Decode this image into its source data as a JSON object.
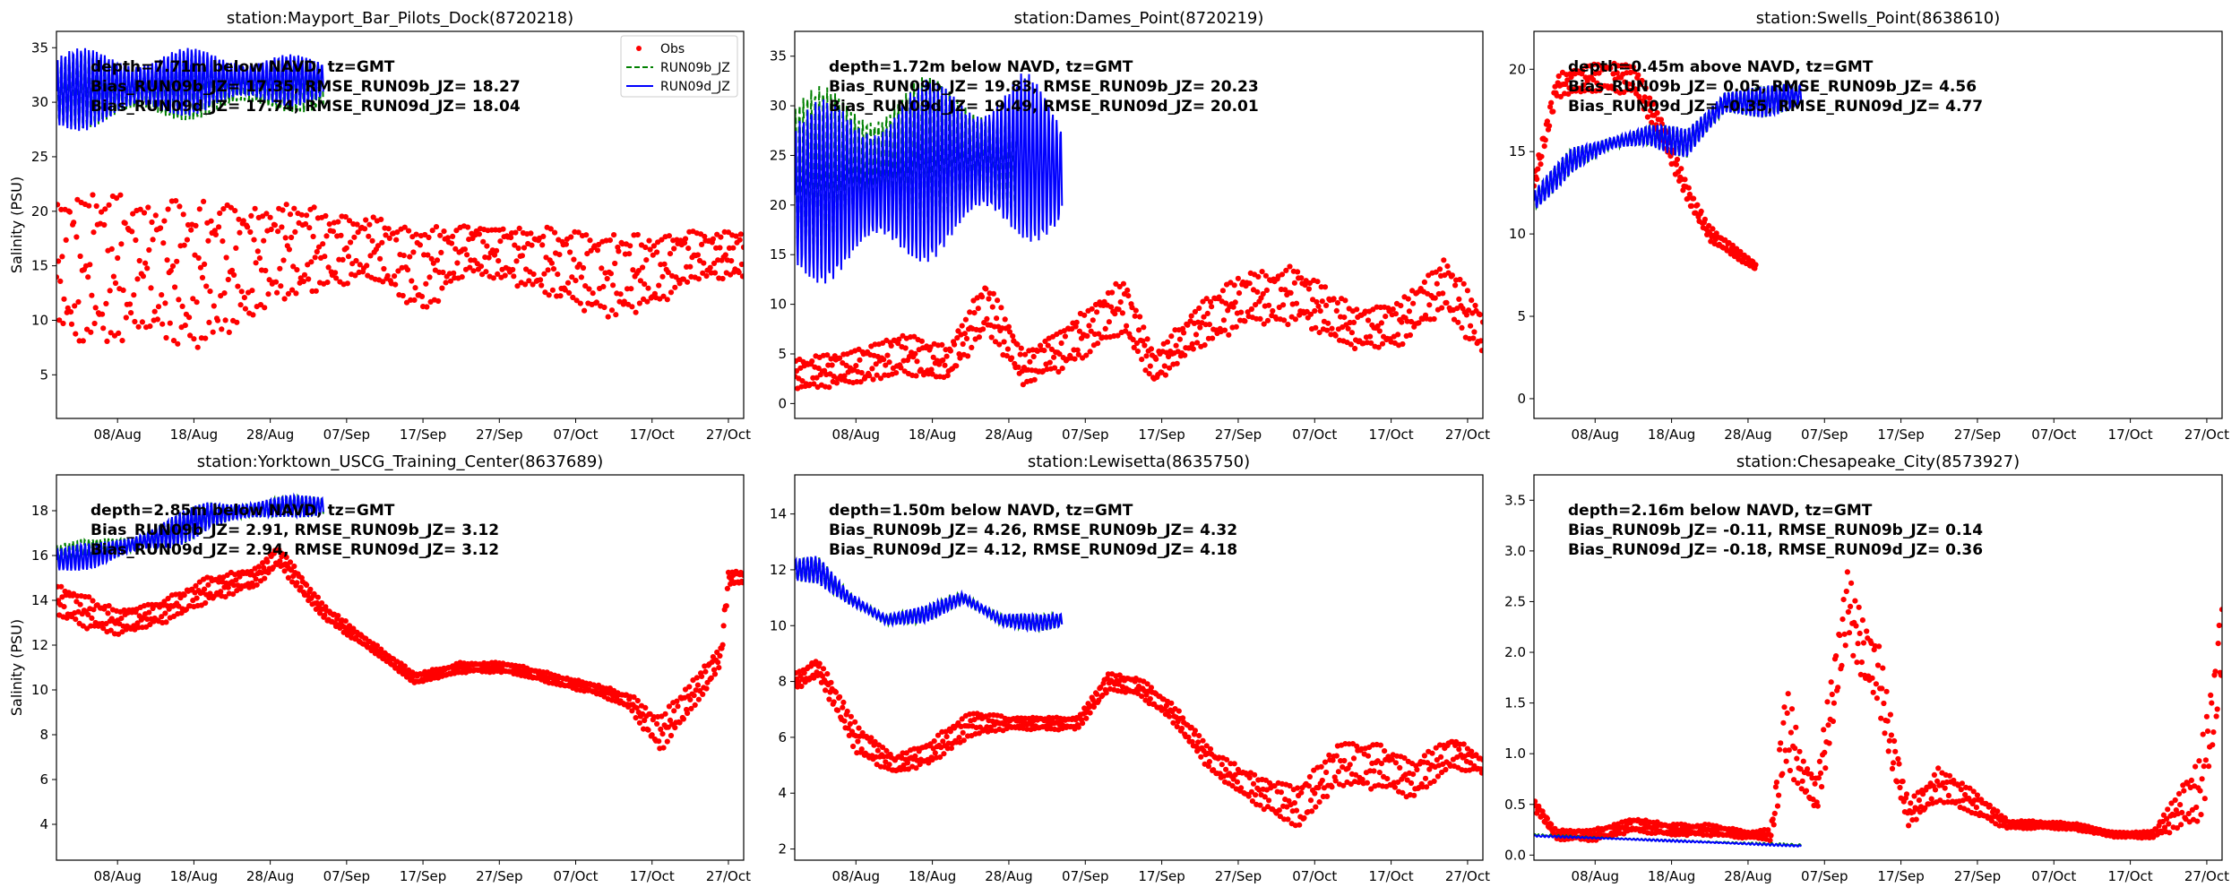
{
  "figure": {
    "ylabel": "Salinity (PSU)",
    "colors": {
      "obs": "#ff0000",
      "run09b": "#008000",
      "run09d": "#0000ff"
    }
  },
  "xaxis": {
    "start_date": "2024-07-31",
    "end_date": "2024-10-29",
    "tick_dates": [
      "2024-08-08",
      "2024-08-18",
      "2024-08-28",
      "2024-09-07",
      "2024-09-17",
      "2024-09-27",
      "2024-10-07",
      "2024-10-17",
      "2024-10-27"
    ],
    "tick_labels": [
      "08/Aug",
      "18/Aug",
      "28/Aug",
      "07/Sep",
      "17/Sep",
      "27/Sep",
      "07/Oct",
      "17/Oct",
      "27/Oct"
    ]
  },
  "legend": {
    "entries": [
      "Obs",
      "RUN09b_JZ",
      "RUN09d_JZ"
    ],
    "placement": "upper-right of first panel"
  },
  "chart_data": [
    {
      "type": "scatter+line",
      "title": "station:Mayport_Bar_Pilots_Dock(8720218)",
      "annotation": [
        "depth=7.71m below NAVD, tz=GMT",
        "Bias_RUN09b_JZ= 17.35, RMSE_RUN09b_JZ= 18.27",
        "Bias_RUN09d_JZ= 17.74, RMSE_RUN09d_JZ= 18.04"
      ],
      "ylim": [
        1,
        36.5
      ],
      "yticks": [
        5,
        10,
        15,
        20,
        25,
        30,
        35
      ],
      "show_ylabel": true,
      "show_legend": true,
      "obs": {
        "x": [
          "2024-07-31",
          "2024-08-06",
          "2024-08-12",
          "2024-08-18",
          "2024-08-24",
          "2024-08-30",
          "2024-09-05",
          "2024-09-11",
          "2024-09-17",
          "2024-09-23",
          "2024-09-29",
          "2024-10-05",
          "2024-10-11",
          "2024-10-17",
          "2024-10-23",
          "2024-10-29"
        ],
        "mean": [
          15.0,
          14.5,
          15.0,
          14.0,
          15.0,
          16.5,
          16.5,
          16.5,
          14.5,
          16.5,
          16.0,
          15.0,
          14.0,
          14.5,
          16.0,
          16.0
        ],
        "amp": [
          6.0,
          6.5,
          5.5,
          6.0,
          5.0,
          4.0,
          3.0,
          2.5,
          3.5,
          2.0,
          2.5,
          3.0,
          3.5,
          3.0,
          2.0,
          2.0
        ]
      },
      "run09b": {
        "x": [
          "2024-07-31",
          "2024-08-10",
          "2024-08-20",
          "2024-08-30",
          "2024-09-04"
        ],
        "mean": [
          31.0,
          31.2,
          31.5,
          31.5,
          31.5
        ],
        "amp": [
          3.5,
          3.5,
          3.0,
          2.5,
          2.5
        ]
      },
      "run09d": {
        "x": [
          "2024-07-31",
          "2024-08-10",
          "2024-08-20",
          "2024-08-30",
          "2024-09-04"
        ],
        "mean": [
          31.0,
          31.5,
          32.0,
          32.0,
          32.0
        ],
        "amp": [
          4.0,
          3.5,
          3.0,
          2.5,
          2.0
        ]
      }
    },
    {
      "type": "scatter+line",
      "title": "station:Dames_Point(8720219)",
      "annotation": [
        "depth=1.72m below NAVD, tz=GMT",
        "Bias_RUN09b_JZ= 19.83, RMSE_RUN09b_JZ= 20.23",
        "Bias_RUN09d_JZ= 19.49, RMSE_RUN09d_JZ= 20.01"
      ],
      "ylim": [
        -1.5,
        37.5
      ],
      "yticks": [
        0,
        5,
        10,
        15,
        20,
        25,
        30,
        35
      ],
      "show_ylabel": false,
      "show_legend": false,
      "obs": {
        "x": [
          "2024-07-31",
          "2024-08-07",
          "2024-08-14",
          "2024-08-20",
          "2024-08-25",
          "2024-08-30",
          "2024-09-05",
          "2024-09-12",
          "2024-09-16",
          "2024-09-22",
          "2024-09-28",
          "2024-10-05",
          "2024-10-12",
          "2024-10-18",
          "2024-10-24",
          "2024-10-29"
        ],
        "mean": [
          3.0,
          3.5,
          5.0,
          4.0,
          10.0,
          3.5,
          6.0,
          10.0,
          3.5,
          8.0,
          10.5,
          11.0,
          7.5,
          8.0,
          12.0,
          7.0
        ],
        "amp": [
          1.5,
          1.5,
          2.0,
          1.5,
          2.5,
          1.5,
          2.0,
          2.5,
          1.5,
          2.0,
          2.5,
          2.5,
          2.0,
          2.0,
          2.5,
          2.0
        ]
      },
      "run09b": {
        "x": [
          "2024-07-31",
          "2024-08-08",
          "2024-08-16",
          "2024-08-24",
          "2024-08-29"
        ],
        "mean": [
          23.0,
          24.0,
          25.0,
          25.0,
          24.0
        ],
        "amp": [
          9.0,
          8.0,
          8.0,
          8.0,
          6.0
        ]
      },
      "run09d": {
        "x": [
          "2024-07-31",
          "2024-08-10",
          "2024-08-20",
          "2024-08-30",
          "2024-09-04"
        ],
        "mean": [
          21.0,
          22.0,
          24.0,
          25.0,
          23.0
        ],
        "amp": [
          9.0,
          10.0,
          9.0,
          9.0,
          6.0
        ]
      }
    },
    {
      "type": "scatter+line",
      "title": "station:Swells_Point(8638610)",
      "annotation": [
        "depth=0.45m above NAVD, tz=GMT",
        "Bias_RUN09b_JZ= 0.05, RMSE_RUN09b_JZ= 4.56",
        "Bias_RUN09d_JZ= -0.35, RMSE_RUN09d_JZ= 4.77"
      ],
      "ylim": [
        -1.2,
        22.3
      ],
      "yticks": [
        0,
        5,
        10,
        15,
        20
      ],
      "show_ylabel": false,
      "show_legend": false,
      "obs": {
        "x": [
          "2024-07-31",
          "2024-08-03",
          "2024-08-08",
          "2024-08-13",
          "2024-08-17",
          "2024-08-20",
          "2024-08-23",
          "2024-08-26",
          "2024-08-29"
        ],
        "mean": [
          13.0,
          19.0,
          19.5,
          19.5,
          16.0,
          12.5,
          10.0,
          9.0,
          8.0
        ],
        "amp": [
          0.5,
          0.6,
          0.8,
          0.8,
          0.6,
          0.5,
          0.4,
          0.3,
          0.2
        ]
      },
      "run09b": {
        "x": [
          "2024-07-31",
          "2024-08-05",
          "2024-08-10",
          "2024-08-15",
          "2024-08-20",
          "2024-08-25",
          "2024-08-30",
          "2024-09-04"
        ],
        "mean": [
          12.0,
          14.5,
          15.5,
          16.0,
          15.5,
          18.0,
          18.0,
          18.5
        ],
        "amp": [
          0.8,
          0.8,
          0.7,
          0.7,
          1.0,
          1.2,
          1.0,
          0.8
        ]
      },
      "run09d": {
        "x": [
          "2024-07-31",
          "2024-08-05",
          "2024-08-10",
          "2024-08-15",
          "2024-08-20",
          "2024-08-25",
          "2024-08-30",
          "2024-09-04"
        ],
        "mean": [
          12.0,
          14.5,
          15.5,
          16.0,
          15.5,
          18.0,
          18.0,
          18.5
        ],
        "amp": [
          0.8,
          0.8,
          0.7,
          0.7,
          1.0,
          1.2,
          1.0,
          0.8
        ]
      }
    },
    {
      "type": "scatter+line",
      "title": "station:Yorktown_USCG_Training_Center(8637689)",
      "annotation": [
        "depth=2.85m below NAVD, tz=GMT",
        "Bias_RUN09b_JZ= 2.91, RMSE_RUN09b_JZ= 3.12",
        "Bias_RUN09d_JZ= 2.94, RMSE_RUN09d_JZ= 3.12"
      ],
      "ylim": [
        2.4,
        19.6
      ],
      "yticks": [
        4,
        6,
        8,
        10,
        12,
        14,
        16,
        18
      ],
      "show_ylabel": true,
      "show_legend": false,
      "obs": {
        "x": [
          "2024-07-31",
          "2024-08-04",
          "2024-08-08",
          "2024-08-14",
          "2024-08-20",
          "2024-08-26",
          "2024-08-29",
          "2024-09-04",
          "2024-09-10",
          "2024-09-16",
          "2024-09-22",
          "2024-09-28",
          "2024-10-04",
          "2024-10-10",
          "2024-10-14",
          "2024-10-18",
          "2024-10-24",
          "2024-10-26",
          "2024-10-27",
          "2024-10-29"
        ],
        "mean": [
          14.0,
          13.5,
          13.0,
          13.5,
          14.5,
          15.0,
          16.0,
          13.5,
          12.0,
          10.5,
          11.0,
          11.0,
          10.5,
          10.0,
          9.5,
          8.0,
          10.5,
          11.5,
          15.0,
          15.0
        ],
        "amp": [
          0.6,
          0.7,
          0.5,
          0.5,
          0.5,
          0.4,
          0.4,
          0.3,
          0.2,
          0.2,
          0.2,
          0.2,
          0.2,
          0.2,
          0.3,
          0.7,
          0.6,
          0.4,
          0.3,
          0.3
        ]
      },
      "run09b": {
        "x": [
          "2024-07-31",
          "2024-08-05",
          "2024-08-10",
          "2024-08-15",
          "2024-08-20",
          "2024-08-25",
          "2024-08-30",
          "2024-09-04"
        ],
        "mean": [
          16.0,
          16.2,
          16.5,
          17.0,
          17.8,
          18.0,
          18.2,
          18.2
        ],
        "amp": [
          0.6,
          0.6,
          0.6,
          0.8,
          0.7,
          0.6,
          0.5,
          0.5
        ]
      },
      "run09d": {
        "x": [
          "2024-07-31",
          "2024-08-05",
          "2024-08-10",
          "2024-08-15",
          "2024-08-20",
          "2024-08-25",
          "2024-08-30",
          "2024-09-04"
        ],
        "mean": [
          15.8,
          16.0,
          16.5,
          17.0,
          17.8,
          18.0,
          18.2,
          18.2
        ],
        "amp": [
          0.6,
          0.6,
          0.6,
          0.8,
          0.7,
          0.6,
          0.5,
          0.5
        ]
      }
    },
    {
      "type": "scatter+line",
      "title": "station:Lewisetta(8635750)",
      "annotation": [
        "depth=1.50m below NAVD, tz=GMT",
        "Bias_RUN09b_JZ= 4.26, RMSE_RUN09b_JZ= 4.32",
        "Bias_RUN09d_JZ= 4.12, RMSE_RUN09d_JZ= 4.18"
      ],
      "ylim": [
        1.6,
        15.4
      ],
      "yticks": [
        2,
        4,
        6,
        8,
        10,
        12,
        14
      ],
      "show_ylabel": false,
      "show_legend": false,
      "obs": {
        "x": [
          "2024-07-31",
          "2024-08-03",
          "2024-08-08",
          "2024-08-13",
          "2024-08-18",
          "2024-08-23",
          "2024-08-28",
          "2024-09-02",
          "2024-09-06",
          "2024-09-10",
          "2024-09-14",
          "2024-09-18",
          "2024-09-24",
          "2024-09-30",
          "2024-10-05",
          "2024-10-10",
          "2024-10-15",
          "2024-10-20",
          "2024-10-25",
          "2024-10-29"
        ],
        "mean": [
          8.0,
          8.5,
          6.0,
          5.0,
          5.5,
          6.5,
          6.5,
          6.5,
          6.5,
          8.0,
          7.8,
          7.0,
          5.0,
          4.0,
          3.5,
          5.0,
          5.0,
          4.5,
          5.5,
          5.0
        ],
        "amp": [
          0.3,
          0.3,
          0.5,
          0.3,
          0.4,
          0.4,
          0.2,
          0.2,
          0.2,
          0.3,
          0.3,
          0.3,
          0.4,
          0.5,
          0.7,
          0.7,
          0.8,
          0.6,
          0.5,
          0.3
        ]
      },
      "run09b": {
        "x": [
          "2024-07-31",
          "2024-08-03",
          "2024-08-07",
          "2024-08-12",
          "2024-08-17",
          "2024-08-22",
          "2024-08-27",
          "2024-09-01",
          "2024-09-04"
        ],
        "mean": [
          12.0,
          12.0,
          11.0,
          10.2,
          10.4,
          11.0,
          10.2,
          10.1,
          10.2
        ],
        "amp": [
          0.5,
          0.5,
          0.3,
          0.3,
          0.3,
          0.3,
          0.3,
          0.3,
          0.3
        ]
      },
      "run09d": {
        "x": [
          "2024-07-31",
          "2024-08-03",
          "2024-08-07",
          "2024-08-12",
          "2024-08-17",
          "2024-08-22",
          "2024-08-27",
          "2024-09-01",
          "2024-09-04"
        ],
        "mean": [
          12.0,
          12.0,
          11.0,
          10.2,
          10.4,
          11.0,
          10.2,
          10.1,
          10.2
        ],
        "amp": [
          0.5,
          0.5,
          0.3,
          0.3,
          0.3,
          0.3,
          0.3,
          0.3,
          0.3
        ]
      }
    },
    {
      "type": "scatter+line",
      "title": "station:Chesapeake_City(8573927)",
      "annotation": [
        "depth=2.16m below NAVD, tz=GMT",
        "Bias_RUN09b_JZ= -0.11, RMSE_RUN09b_JZ= 0.14",
        "Bias_RUN09d_JZ= -0.18, RMSE_RUN09d_JZ= 0.36"
      ],
      "ylim": [
        -0.05,
        3.75
      ],
      "yticks": [
        0.0,
        0.5,
        1.0,
        1.5,
        2.0,
        2.5,
        3.0,
        3.5
      ],
      "show_ylabel": false,
      "show_legend": false,
      "obs": {
        "x": [
          "2024-07-31",
          "2024-08-03",
          "2024-08-08",
          "2024-08-13",
          "2024-08-18",
          "2024-08-23",
          "2024-08-28",
          "2024-08-31",
          "2024-09-02",
          "2024-09-04",
          "2024-09-06",
          "2024-09-08",
          "2024-09-10",
          "2024-09-12",
          "2024-09-14",
          "2024-09-16",
          "2024-09-18",
          "2024-09-22",
          "2024-09-27",
          "2024-10-01",
          "2024-10-05",
          "2024-10-10",
          "2024-10-15",
          "2024-10-20",
          "2024-10-24",
          "2024-10-26",
          "2024-10-28",
          "2024-10-29"
        ],
        "mean": [
          0.5,
          0.2,
          0.2,
          0.3,
          0.25,
          0.25,
          0.2,
          0.2,
          1.3,
          0.8,
          0.6,
          1.5,
          2.5,
          2.0,
          1.8,
          1.0,
          0.4,
          0.7,
          0.5,
          0.3,
          0.3,
          0.28,
          0.2,
          0.2,
          0.5,
          0.6,
          1.5,
          2.2
        ],
        "amp": [
          0.05,
          0.04,
          0.05,
          0.06,
          0.05,
          0.05,
          0.03,
          0.05,
          0.4,
          0.15,
          0.15,
          0.3,
          0.3,
          0.3,
          0.3,
          0.2,
          0.1,
          0.15,
          0.1,
          0.04,
          0.03,
          0.03,
          0.02,
          0.03,
          0.2,
          0.3,
          0.4,
          0.4
        ]
      },
      "run09b": {
        "x": [
          "2024-07-31",
          "2024-08-15",
          "2024-09-04"
        ],
        "mean": [
          0.2,
          0.15,
          0.1
        ],
        "amp": [
          0.01,
          0.01,
          0.01
        ]
      },
      "run09d": {
        "x": [
          "2024-07-31",
          "2024-08-15",
          "2024-09-04"
        ],
        "mean": [
          0.19,
          0.15,
          0.09
        ],
        "amp": [
          0.01,
          0.01,
          0.01
        ]
      }
    }
  ]
}
